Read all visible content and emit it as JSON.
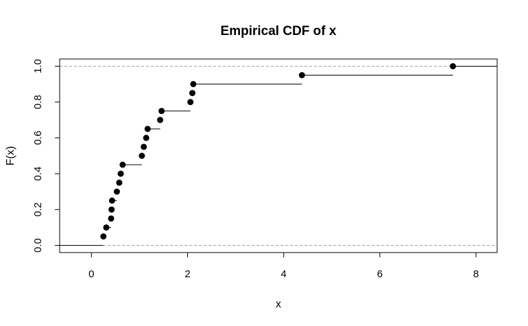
{
  "chart_data": {
    "type": "step",
    "title": "Empirical CDF of x",
    "xlabel": "x",
    "ylabel": "F(x)",
    "xlim": [
      -0.66,
      8.44
    ],
    "ylim": [
      -0.04,
      1.04
    ],
    "x_ticks": [
      0,
      2,
      4,
      6,
      8
    ],
    "x_tick_labels": [
      "0",
      "2",
      "4",
      "6",
      "8"
    ],
    "y_ticks": [
      0.0,
      0.2,
      0.4,
      0.6,
      0.8,
      1.0
    ],
    "y_tick_labels": [
      "0.0",
      "0.2",
      "0.4",
      "0.6",
      "0.8",
      "1.0"
    ],
    "reference_lines_y": [
      0,
      1
    ],
    "points": [
      {
        "x": 0.25,
        "y": 0.05
      },
      {
        "x": 0.31,
        "y": 0.1
      },
      {
        "x": 0.41,
        "y": 0.15
      },
      {
        "x": 0.42,
        "y": 0.2
      },
      {
        "x": 0.43,
        "y": 0.25
      },
      {
        "x": 0.53,
        "y": 0.3
      },
      {
        "x": 0.58,
        "y": 0.35
      },
      {
        "x": 0.61,
        "y": 0.4
      },
      {
        "x": 0.65,
        "y": 0.45
      },
      {
        "x": 1.05,
        "y": 0.5
      },
      {
        "x": 1.09,
        "y": 0.55
      },
      {
        "x": 1.14,
        "y": 0.6
      },
      {
        "x": 1.17,
        "y": 0.65
      },
      {
        "x": 1.43,
        "y": 0.7
      },
      {
        "x": 1.46,
        "y": 0.75
      },
      {
        "x": 2.06,
        "y": 0.8
      },
      {
        "x": 2.1,
        "y": 0.85
      },
      {
        "x": 2.12,
        "y": 0.9
      },
      {
        "x": 4.38,
        "y": 0.95
      },
      {
        "x": 7.52,
        "y": 1.0
      }
    ],
    "grid": false,
    "legend": "none"
  }
}
